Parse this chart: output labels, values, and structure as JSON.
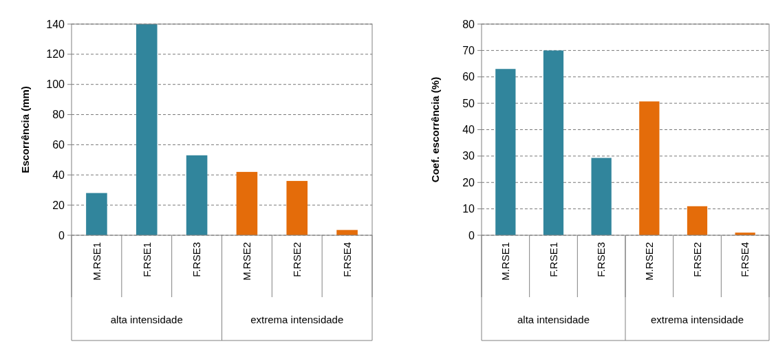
{
  "chart_data": [
    {
      "type": "bar",
      "ylabel": "Escorrência (mm)",
      "categories": [
        "M.RSE1",
        "F.RSE1",
        "F.RSE3",
        "M.RSE2",
        "F.RSE2",
        "F.RSE4"
      ],
      "values": [
        28,
        140,
        53,
        42,
        36,
        3.5
      ],
      "colors": [
        "#31859c",
        "#31859c",
        "#31859c",
        "#e46c0a",
        "#e46c0a",
        "#e46c0a"
      ],
      "ylim": [
        0,
        140
      ],
      "yticks": [
        0,
        20,
        40,
        60,
        80,
        100,
        120,
        140
      ],
      "grid": "y",
      "annotations": [
        "alta intensidade",
        "extrema intensidade"
      ]
    },
    {
      "type": "bar",
      "ylabel": "Coef. escorrência (%)",
      "categories": [
        "M.RSE1",
        "F.RSE1",
        "F.RSE3",
        "M.RSE2",
        "F.RSE2",
        "F.RSE4"
      ],
      "values": [
        63,
        70,
        29.3,
        50.7,
        11,
        1
      ],
      "colors": [
        "#31859c",
        "#31859c",
        "#31859c",
        "#e46c0a",
        "#e46c0a",
        "#e46c0a"
      ],
      "ylim": [
        0,
        80
      ],
      "yticks": [
        0,
        10,
        20,
        30,
        40,
        50,
        60,
        70,
        80
      ],
      "grid": "y",
      "annotations": [
        "alta intensidade",
        "extrema intensidade"
      ]
    }
  ]
}
